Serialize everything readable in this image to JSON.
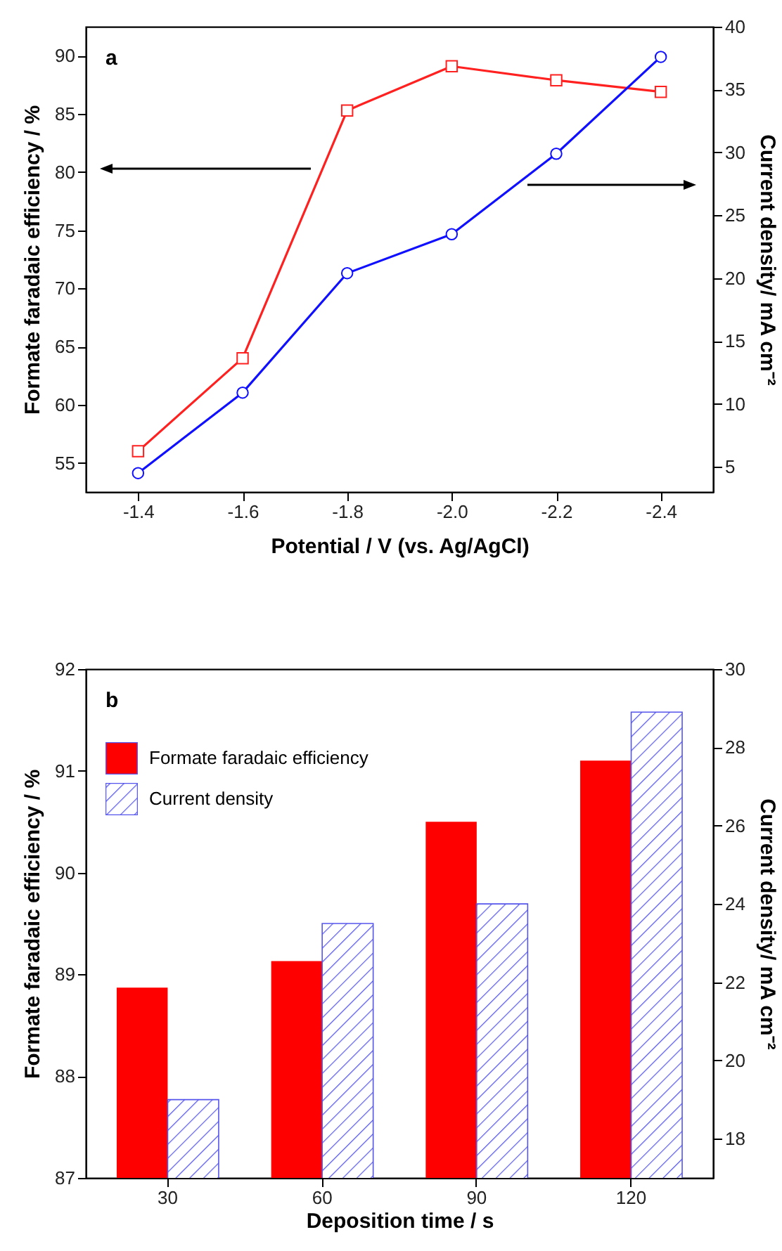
{
  "chart_data": [
    {
      "type": "line",
      "xlabel": "Potential / V (vs. Ag/AgCl)",
      "ylabel": "Formate faradaic efficiency  / %",
      "y2label": "Current density/ mA cm⁻²",
      "annotations": [
        "a"
      ],
      "x": [
        -1.4,
        -1.6,
        -1.8,
        -2.0,
        -2.2,
        -2.4
      ],
      "xlim": [
        -1.3,
        -2.5
      ],
      "xticks": [
        {
          "value": -1.4,
          "label": "-1.4"
        },
        {
          "value": -1.6,
          "label": "-1.6"
        },
        {
          "value": -1.8,
          "label": "-1.8"
        },
        {
          "value": -2.0,
          "label": "-2.0"
        },
        {
          "value": -2.2,
          "label": "-2.2"
        },
        {
          "value": -2.4,
          "label": "-2.4"
        }
      ],
      "ylim": [
        52.5,
        92.5
      ],
      "yticks": [
        55,
        60,
        65,
        70,
        75,
        80,
        85,
        90
      ],
      "y2lim": [
        3,
        40
      ],
      "y2ticks": [
        5,
        10,
        15,
        20,
        25,
        30,
        35,
        40
      ],
      "series": [
        {
          "color": "#ff2020",
          "marker": "square",
          "values": [
            56,
            64,
            85.3,
            89.1,
            87.9,
            86.9
          ]
        },
        {
          "color": "#1010ff",
          "marker": "circle",
          "axis": "y2",
          "values": [
            4.5,
            10.9,
            20.4,
            23.5,
            29.9,
            37.6
          ]
        }
      ],
      "grid": false,
      "legend": false
    },
    {
      "type": "bar",
      "xlabel": "Deposition time / s",
      "ylabel": "Formate faradaic efficiency  / %",
      "y2label": "Current density/ mA cm⁻²",
      "annotations": [
        "b"
      ],
      "categories": [
        "30",
        "60",
        "90",
        "120"
      ],
      "ylim": [
        87,
        92
      ],
      "yticks": [
        87,
        88,
        89,
        90,
        91,
        92
      ],
      "y2lim": [
        17,
        30
      ],
      "y2ticks": [
        18,
        20,
        22,
        24,
        26,
        28,
        30
      ],
      "series": [
        {
          "name": "Formate faradaic efficiency",
          "color": "#ff0000",
          "values": [
            88.87,
            89.13,
            90.5,
            91.1
          ]
        },
        {
          "name": "Current density",
          "color": "#5555ee",
          "axis": "y2",
          "values": [
            19,
            23.5,
            24,
            28.9
          ]
        }
      ],
      "grid": false,
      "legend": "top left"
    }
  ]
}
